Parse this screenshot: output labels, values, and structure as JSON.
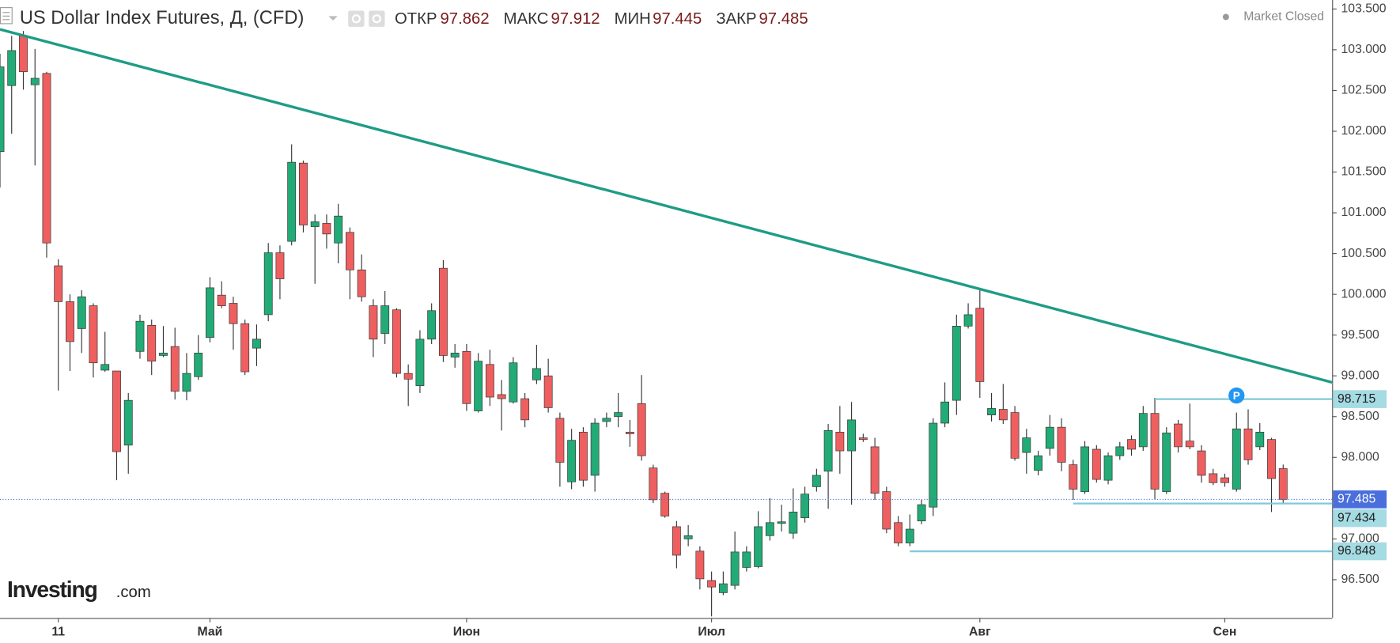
{
  "header": {
    "title": "US Dollar Index Futures, Д, (CFD)",
    "fields": [
      {
        "label": "ОТКР",
        "value": 97.862
      },
      {
        "label": "МАКС",
        "value": 97.912
      },
      {
        "label": "МИН",
        "value": 97.445
      },
      {
        "label": "ЗАКР",
        "value": 97.485
      }
    ],
    "status": "Market Closed"
  },
  "watermark": {
    "brand": "Investing",
    "suffix": ".com"
  },
  "chart_data": {
    "type": "candlestick",
    "up_color": "#22ab76",
    "down_color": "#ef5f5f",
    "open": [
      101.75,
      102.56,
      103.17,
      102.57,
      102.71,
      100.35,
      99.91,
      99.58,
      99.86,
      99.07,
      99.06,
      98.15,
      99.3,
      99.62,
      99.25,
      99.36,
      98.81,
      98.99,
      99.47,
      99.99,
      99.89,
      99.64,
      99.34,
      99.75,
      100.51,
      100.65,
      101.61,
      100.83,
      100.87,
      100.63,
      100.76,
      100.3,
      99.86,
      99.52,
      99.81,
      99.03,
      98.88,
      99.45,
      100.32,
      99.23,
      99.3,
      98.57,
      99.14,
      98.77,
      98.68,
      98.72,
      98.95,
      99.0,
      98.48,
      97.7,
      98.31,
      97.78,
      98.44,
      98.5,
      98.31,
      98.66,
      97.87,
      97.56,
      97.15,
      97.0,
      96.85,
      96.49,
      96.34,
      96.43,
      96.65,
      96.66,
      97.04,
      97.19,
      97.07,
      97.26,
      97.64,
      97.83,
      98.31,
      98.08,
      98.24,
      98.13,
      97.58,
      97.2,
      96.95,
      97.22,
      97.39,
      98.42,
      98.7,
      99.61,
      99.83,
      98.52,
      98.59,
      98.55,
      98.06,
      97.84,
      98.11,
      98.37,
      97.91,
      97.58,
      98.1,
      97.72,
      98.02,
      98.22,
      98.13,
      98.54,
      97.58,
      98.41,
      98.2,
      98.08,
      97.8,
      97.75,
      97.61,
      98.35,
      98.13,
      98.22,
      97.862
    ],
    "high": [
      102.95,
      103.17,
      103.23,
      103.01,
      102.73,
      100.43,
      100.0,
      100.05,
      99.89,
      99.54,
      99.06,
      98.79,
      99.75,
      99.69,
      99.61,
      99.59,
      99.28,
      99.5,
      100.21,
      100.16,
      99.97,
      99.69,
      99.63,
      100.63,
      100.6,
      101.84,
      101.64,
      100.98,
      100.98,
      101.11,
      100.82,
      100.49,
      99.94,
      100.04,
      99.83,
      99.14,
      99.56,
      99.89,
      100.42,
      99.39,
      99.39,
      99.28,
      99.32,
      98.95,
      99.23,
      98.79,
      99.38,
      99.21,
      98.55,
      98.35,
      98.37,
      98.48,
      98.55,
      98.79,
      98.46,
      99.01,
      97.91,
      97.58,
      97.22,
      97.17,
      96.91,
      96.6,
      96.6,
      97.09,
      96.91,
      97.34,
      97.5,
      97.42,
      97.62,
      97.64,
      97.86,
      98.41,
      98.63,
      98.68,
      98.29,
      98.24,
      97.64,
      97.28,
      97.3,
      97.48,
      98.48,
      98.92,
      99.75,
      99.89,
      100.08,
      98.79,
      98.9,
      98.63,
      98.35,
      98.08,
      98.52,
      98.48,
      97.97,
      98.2,
      98.15,
      98.06,
      98.19,
      98.27,
      98.63,
      98.73,
      98.37,
      98.46,
      98.66,
      98.15,
      97.86,
      97.8,
      98.55,
      98.59,
      98.42,
      98.24,
      97.912
    ],
    "low": [
      101.31,
      101.97,
      102.51,
      101.58,
      100.45,
      98.82,
      99.06,
      99.28,
      98.98,
      99.05,
      97.72,
      97.8,
      99.21,
      99.01,
      99.23,
      98.71,
      98.7,
      98.95,
      99.41,
      99.83,
      99.32,
      99.01,
      99.12,
      99.67,
      99.94,
      100.6,
      100.76,
      100.13,
      100.56,
      100.38,
      99.94,
      99.91,
      99.23,
      99.39,
      98.98,
      98.63,
      98.79,
      99.39,
      99.17,
      99.1,
      98.57,
      98.55,
      98.63,
      98.33,
      98.66,
      98.37,
      98.9,
      98.55,
      97.64,
      97.61,
      97.64,
      97.58,
      98.37,
      98.37,
      98.13,
      97.96,
      97.44,
      97.26,
      96.64,
      96.91,
      96.38,
      96.05,
      96.31,
      96.38,
      96.6,
      96.64,
      96.98,
      97.09,
      97.0,
      97.2,
      97.58,
      97.37,
      97.8,
      97.42,
      98.19,
      97.48,
      97.07,
      96.91,
      96.91,
      97.18,
      97.28,
      98.37,
      98.52,
      99.58,
      98.73,
      98.44,
      98.41,
      97.96,
      97.8,
      97.78,
      98.02,
      97.83,
      97.48,
      97.55,
      97.69,
      97.67,
      97.97,
      98.02,
      98.08,
      97.48,
      97.55,
      98.06,
      98.1,
      97.69,
      97.66,
      97.64,
      97.58,
      97.91,
      98.09,
      97.33,
      97.445
    ],
    "close": [
      102.79,
      102.99,
      102.73,
      102.65,
      100.63,
      99.91,
      99.42,
      99.97,
      99.16,
      99.14,
      98.07,
      98.7,
      99.67,
      99.18,
      99.28,
      98.81,
      99.03,
      99.28,
      100.08,
      99.86,
      99.64,
      99.05,
      99.45,
      100.51,
      100.19,
      101.62,
      100.85,
      100.89,
      100.74,
      100.96,
      100.3,
      99.97,
      99.45,
      99.86,
      99.03,
      98.96,
      99.45,
      99.8,
      99.25,
      99.28,
      98.66,
      99.18,
      98.74,
      98.72,
      99.16,
      98.46,
      99.09,
      98.61,
      97.94,
      98.21,
      97.72,
      98.42,
      98.48,
      98.55,
      98.29,
      98.02,
      97.48,
      97.28,
      96.8,
      97.04,
      96.51,
      96.41,
      96.45,
      96.84,
      96.84,
      97.15,
      97.2,
      97.21,
      97.33,
      97.55,
      97.78,
      98.33,
      98.08,
      98.46,
      98.22,
      97.56,
      97.12,
      96.95,
      97.12,
      97.42,
      98.42,
      98.68,
      99.61,
      99.75,
      98.93,
      98.6,
      98.46,
      97.99,
      98.24,
      98.02,
      98.37,
      97.94,
      97.61,
      98.13,
      97.73,
      98.02,
      98.13,
      98.1,
      98.54,
      97.61,
      98.3,
      98.13,
      98.13,
      97.78,
      97.69,
      97.69,
      98.35,
      97.97,
      98.31,
      97.74,
      97.485
    ],
    "xlim": [
      0,
      114.2
    ],
    "xticks": [
      {
        "value": 5,
        "label": "11"
      },
      {
        "value": 18,
        "label": "Май"
      },
      {
        "value": 40,
        "label": "Июн"
      },
      {
        "value": 61,
        "label": "Июл"
      },
      {
        "value": 84,
        "label": "Авг"
      },
      {
        "value": 105,
        "label": "Сен"
      }
    ],
    "ylim": [
      96.03,
      103.61
    ],
    "yticks": [
      {
        "value": 96.5,
        "label": "96.500"
      },
      {
        "value": 97,
        "label": "97.000"
      },
      {
        "value": 97.5,
        "label": "97.500"
      },
      {
        "value": 98,
        "label": "98.000"
      },
      {
        "value": 98.5,
        "label": "98.500"
      },
      {
        "value": 99,
        "label": "99.000"
      },
      {
        "value": 99.5,
        "label": "99.500"
      },
      {
        "value": 100,
        "label": "100.000"
      },
      {
        "value": 100.5,
        "label": "100.500"
      },
      {
        "value": 101,
        "label": "101.000"
      },
      {
        "value": 101.5,
        "label": "101.500"
      },
      {
        "value": 102,
        "label": "102.000"
      },
      {
        "value": 102.5,
        "label": "102.500"
      },
      {
        "value": 103,
        "label": "103.000"
      },
      {
        "value": 103.5,
        "label": "103.500"
      }
    ],
    "last_price": 97.485,
    "levels": [
      {
        "value": 98.715,
        "from": 99
      },
      {
        "value": 97.434,
        "from": 92
      },
      {
        "value": 96.848,
        "from": 78
      }
    ],
    "trendline": {
      "x": [
        0,
        114.2
      ],
      "y": [
        103.25,
        98.92
      ],
      "color": "#1e9c85"
    },
    "marker": {
      "label": "P",
      "x": 106,
      "value": 98.715
    }
  }
}
